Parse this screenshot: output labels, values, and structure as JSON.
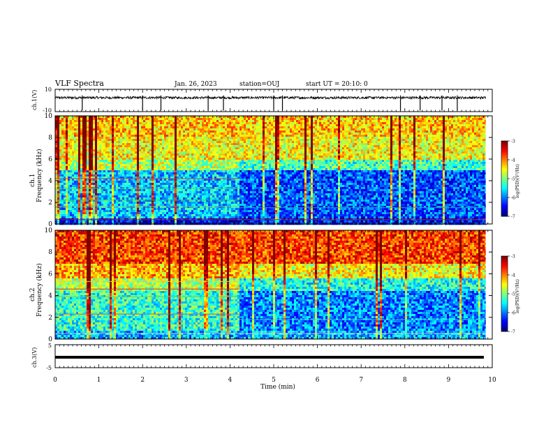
{
  "header": {
    "title": "VLF Spectra",
    "date": "Jan. 26, 2023",
    "station": "station=OUJ",
    "start": "start UT =  20:10: 0"
  },
  "chart_data": [
    {
      "type": "line",
      "name": "ch1-waveform",
      "ylabel": "ch.1(V)",
      "ylim": [
        -10,
        10
      ],
      "yticks": [
        "10",
        "-10"
      ],
      "xlim": [
        0,
        9.85
      ],
      "baseline": 2.5,
      "spikes_min": [
        0.62,
        2.0,
        2.42,
        3.5,
        3.85,
        5.0,
        5.2,
        7.9,
        8.35,
        8.85,
        9.2
      ]
    },
    {
      "type": "heatmap",
      "name": "ch1-spectrogram",
      "ylabel": "ch.1\nFrequency (kHz)",
      "ylim": [
        0,
        10
      ],
      "yticks": [
        "0",
        "2",
        "4",
        "6",
        "8",
        "10"
      ],
      "xlim": [
        0,
        9.85
      ],
      "colorbar": {
        "label": "log(PSD)(V²/Hz)",
        "range": [
          -7,
          -3
        ],
        "ticks": [
          "-3",
          "-4",
          "-5",
          "-6",
          "-7"
        ]
      }
    },
    {
      "type": "heatmap",
      "name": "ch2-spectrogram",
      "ylabel": "ch.2\nFrequency (kHz)",
      "ylim": [
        0,
        10
      ],
      "yticks": [
        "0",
        "2",
        "4",
        "6",
        "8",
        "10"
      ],
      "xlim": [
        0,
        9.85
      ],
      "colorbar": {
        "label": "log(PSD)(V²/Hz)",
        "range": [
          -7,
          -3
        ],
        "ticks": [
          "-3",
          "-4",
          "-5",
          "-6",
          "-7"
        ]
      }
    },
    {
      "type": "line",
      "name": "ch3-waveform",
      "ylabel": "ch.3(V)",
      "ylim": [
        -5,
        5
      ],
      "yticks": [
        "5",
        "-5"
      ],
      "xlim": [
        0,
        9.85
      ],
      "baseline": 0
    }
  ],
  "xaxis": {
    "label": "Time (min)",
    "ticks": [
      "0",
      "1",
      "2",
      "3",
      "4",
      "5",
      "6",
      "7",
      "8",
      "9",
      "10"
    ],
    "range": [
      0,
      10
    ]
  }
}
